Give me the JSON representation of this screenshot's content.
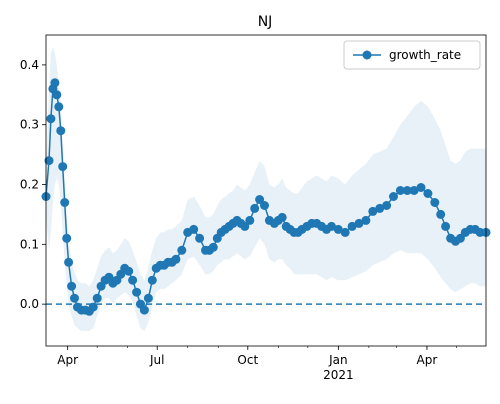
{
  "chart_data": {
    "type": "line",
    "title": "NJ",
    "xlabel": "",
    "ylabel": "",
    "x_range": [
      "2020-03-10",
      "2021-05-31"
    ],
    "ylim": [
      -0.07,
      0.45
    ],
    "yticks": [
      0.0,
      0.1,
      0.2,
      0.3,
      0.4
    ],
    "ytick_labels": [
      "0.0",
      "0.1",
      "0.2",
      "0.3",
      "0.4"
    ],
    "xticks": [
      "2020-04-01",
      "2020-07-01",
      "2020-10-01",
      "2021-01-01",
      "2021-04-01"
    ],
    "xtick_labels": [
      "Apr",
      "Jul",
      "Oct",
      "Jan",
      "Apr"
    ],
    "xtick_year_label": "2021",
    "legend": {
      "location": "upper right",
      "entries": [
        "growth_rate"
      ]
    },
    "grid": false,
    "reference_line": {
      "y": 0.0,
      "style": "dashed"
    },
    "series": [
      {
        "name": "growth_rate",
        "marker": "o",
        "color": "#1f77b4",
        "band_color": "#1f77b4",
        "x": [
          "2020-03-10",
          "2020-03-13",
          "2020-03-15",
          "2020-03-17",
          "2020-03-19",
          "2020-03-21",
          "2020-03-23",
          "2020-03-25",
          "2020-03-27",
          "2020-03-29",
          "2020-03-31",
          "2020-04-02",
          "2020-04-05",
          "2020-04-08",
          "2020-04-11",
          "2020-04-15",
          "2020-04-19",
          "2020-04-23",
          "2020-04-27",
          "2020-05-01",
          "2020-05-05",
          "2020-05-09",
          "2020-05-13",
          "2020-05-17",
          "2020-05-21",
          "2020-05-25",
          "2020-05-29",
          "2020-06-02",
          "2020-06-06",
          "2020-06-10",
          "2020-06-14",
          "2020-06-18",
          "2020-06-22",
          "2020-06-26",
          "2020-06-30",
          "2020-07-04",
          "2020-07-08",
          "2020-07-12",
          "2020-07-16",
          "2020-07-20",
          "2020-07-26",
          "2020-08-01",
          "2020-08-07",
          "2020-08-13",
          "2020-08-19",
          "2020-08-23",
          "2020-08-27",
          "2020-08-31",
          "2020-09-04",
          "2020-09-08",
          "2020-09-12",
          "2020-09-16",
          "2020-09-20",
          "2020-09-24",
          "2020-09-28",
          "2020-10-03",
          "2020-10-08",
          "2020-10-13",
          "2020-10-18",
          "2020-10-23",
          "2020-10-28",
          "2020-11-01",
          "2020-11-05",
          "2020-11-09",
          "2020-11-13",
          "2020-11-17",
          "2020-11-21",
          "2020-11-25",
          "2020-11-30",
          "2020-12-05",
          "2020-12-10",
          "2020-12-15",
          "2020-12-20",
          "2020-12-25",
          "2021-01-01",
          "2021-01-08",
          "2021-01-15",
          "2021-01-22",
          "2021-01-29",
          "2021-02-05",
          "2021-02-12",
          "2021-02-19",
          "2021-02-26",
          "2021-03-05",
          "2021-03-12",
          "2021-03-19",
          "2021-03-26",
          "2021-04-02",
          "2021-04-09",
          "2021-04-15",
          "2021-04-20",
          "2021-04-25",
          "2021-04-30",
          "2021-05-05",
          "2021-05-10",
          "2021-05-15",
          "2021-05-20",
          "2021-05-25",
          "2021-05-31"
        ],
        "y": [
          0.18,
          0.24,
          0.31,
          0.36,
          0.37,
          0.35,
          0.33,
          0.29,
          0.23,
          0.17,
          0.11,
          0.07,
          0.03,
          0.01,
          -0.005,
          -0.01,
          -0.01,
          -0.012,
          -0.005,
          0.01,
          0.03,
          0.04,
          0.045,
          0.035,
          0.04,
          0.05,
          0.06,
          0.055,
          0.04,
          0.02,
          0.0,
          -0.01,
          0.01,
          0.04,
          0.06,
          0.065,
          0.065,
          0.07,
          0.07,
          0.075,
          0.09,
          0.12,
          0.125,
          0.11,
          0.09,
          0.09,
          0.095,
          0.11,
          0.12,
          0.125,
          0.13,
          0.135,
          0.14,
          0.135,
          0.13,
          0.14,
          0.16,
          0.175,
          0.165,
          0.14,
          0.135,
          0.14,
          0.145,
          0.13,
          0.125,
          0.12,
          0.12,
          0.125,
          0.13,
          0.135,
          0.135,
          0.13,
          0.125,
          0.13,
          0.125,
          0.12,
          0.13,
          0.135,
          0.14,
          0.155,
          0.16,
          0.165,
          0.18,
          0.19,
          0.19,
          0.19,
          0.195,
          0.185,
          0.17,
          0.15,
          0.13,
          0.11,
          0.105,
          0.11,
          0.12,
          0.125,
          0.125,
          0.12,
          0.12
        ],
        "lower": [
          0.15,
          0.09,
          0.12,
          0.17,
          0.2,
          0.21,
          0.2,
          0.17,
          0.12,
          0.07,
          0.03,
          0.0,
          -0.02,
          -0.035,
          -0.04,
          -0.045,
          -0.045,
          -0.045,
          -0.04,
          -0.02,
          0.0,
          0.01,
          0.01,
          0.0,
          0.01,
          0.015,
          0.02,
          0.015,
          0.005,
          -0.02,
          -0.04,
          -0.045,
          -0.03,
          -0.005,
          0.02,
          0.025,
          0.025,
          0.03,
          0.035,
          0.04,
          0.05,
          0.075,
          0.08,
          0.065,
          0.05,
          0.05,
          0.055,
          0.065,
          0.07,
          0.075,
          0.075,
          0.08,
          0.085,
          0.08,
          0.075,
          0.08,
          0.095,
          0.11,
          0.1,
          0.075,
          0.07,
          0.075,
          0.075,
          0.065,
          0.06,
          0.05,
          0.05,
          0.05,
          0.05,
          0.05,
          0.05,
          0.045,
          0.04,
          0.045,
          0.04,
          0.04,
          0.045,
          0.05,
          0.055,
          0.065,
          0.07,
          0.075,
          0.085,
          0.09,
          0.085,
          0.085,
          0.085,
          0.075,
          0.06,
          0.045,
          0.035,
          0.025,
          0.02,
          0.025,
          0.03,
          0.035,
          0.035,
          0.03,
          0.03
        ],
        "upper": [
          0.22,
          0.36,
          0.42,
          0.43,
          0.42,
          0.4,
          0.37,
          0.33,
          0.27,
          0.21,
          0.15,
          0.11,
          0.07,
          0.055,
          0.04,
          0.035,
          0.035,
          0.03,
          0.04,
          0.06,
          0.08,
          0.09,
          0.095,
          0.085,
          0.09,
          0.1,
          0.11,
          0.105,
          0.09,
          0.07,
          0.05,
          0.04,
          0.06,
          0.09,
          0.11,
          0.12,
          0.12,
          0.125,
          0.125,
          0.13,
          0.14,
          0.175,
          0.18,
          0.165,
          0.145,
          0.145,
          0.15,
          0.165,
          0.175,
          0.18,
          0.185,
          0.19,
          0.2,
          0.195,
          0.19,
          0.2,
          0.22,
          0.24,
          0.23,
          0.2,
          0.195,
          0.2,
          0.21,
          0.195,
          0.19,
          0.185,
          0.185,
          0.195,
          0.205,
          0.21,
          0.215,
          0.21,
          0.205,
          0.215,
          0.21,
          0.2,
          0.215,
          0.225,
          0.235,
          0.25,
          0.255,
          0.26,
          0.28,
          0.3,
          0.315,
          0.33,
          0.34,
          0.33,
          0.31,
          0.29,
          0.265,
          0.24,
          0.235,
          0.24,
          0.255,
          0.26,
          0.26,
          0.26,
          0.26
        ]
      }
    ]
  }
}
